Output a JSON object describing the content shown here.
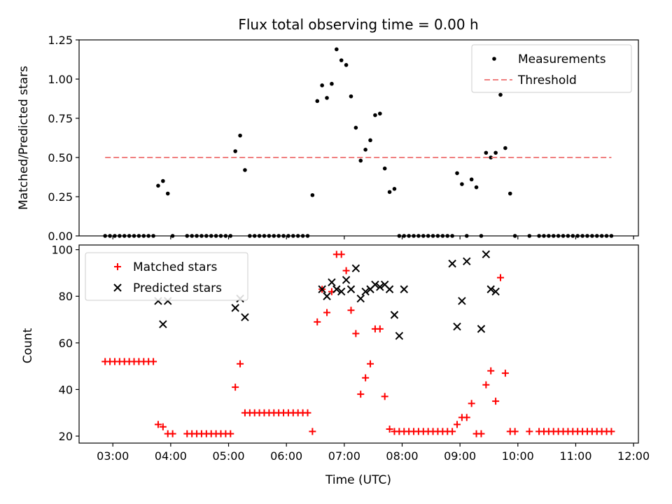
{
  "chart_data": [
    {
      "type": "scatter",
      "title": "Flux total observing time = 0.00 h",
      "xlabel": "",
      "ylabel": "Matched/Predicted stars",
      "xlim": [
        "02:25",
        "12:05"
      ],
      "ylim": [
        0,
        1.25
      ],
      "yticks": [
        0.0,
        0.25,
        0.5,
        0.75,
        1.0,
        1.25
      ],
      "ytick_labels": [
        "0.00",
        "0.25",
        "0.50",
        "0.75",
        "1.00",
        "1.25"
      ],
      "legend": {
        "position": "top-right",
        "entries": [
          "Measurements",
          "Threshold"
        ]
      },
      "series": [
        {
          "name": "Measurements",
          "marker": "dot",
          "color": "#000000",
          "x": [
            "02:52",
            "02:57",
            "03:02",
            "03:07",
            "03:12",
            "03:17",
            "03:22",
            "03:27",
            "03:32",
            "03:37",
            "03:42",
            "03:47",
            "03:52",
            "03:57",
            "04:02",
            "04:17",
            "04:22",
            "04:27",
            "04:32",
            "04:37",
            "04:42",
            "04:47",
            "04:52",
            "04:57",
            "05:02",
            "05:07",
            "05:12",
            "05:17",
            "05:22",
            "05:27",
            "05:32",
            "05:37",
            "05:42",
            "05:47",
            "05:52",
            "05:57",
            "06:02",
            "06:07",
            "06:12",
            "06:17",
            "06:22",
            "06:27",
            "06:32",
            "06:37",
            "06:42",
            "06:47",
            "06:52",
            "06:57",
            "07:02",
            "07:07",
            "07:12",
            "07:17",
            "07:22",
            "07:27",
            "07:32",
            "07:37",
            "07:42",
            "07:47",
            "07:52",
            "07:57",
            "08:02",
            "08:07",
            "08:12",
            "08:17",
            "08:22",
            "08:27",
            "08:32",
            "08:37",
            "08:42",
            "08:47",
            "08:52",
            "08:57",
            "09:02",
            "09:07",
            "09:12",
            "09:17",
            "09:22",
            "09:27",
            "09:32",
            "09:37",
            "09:42",
            "09:47",
            "09:52",
            "09:57",
            "10:12",
            "10:22",
            "10:27",
            "10:32",
            "10:37",
            "10:42",
            "10:47",
            "10:52",
            "10:57",
            "11:02",
            "11:07",
            "11:12",
            "11:17",
            "11:22",
            "11:27",
            "11:32",
            "11:37"
          ],
          "y": [
            0,
            0,
            0,
            0,
            0,
            0,
            0,
            0,
            0,
            0,
            0,
            0.32,
            0.35,
            0.27,
            0,
            0,
            0,
            0,
            0,
            0,
            0,
            0,
            0,
            0,
            0,
            0.54,
            0.64,
            0.42,
            0,
            0,
            0,
            0,
            0,
            0,
            0,
            0,
            0,
            0,
            0,
            0,
            0,
            0.26,
            0.86,
            0.96,
            0.88,
            0.97,
            1.19,
            1.12,
            1.09,
            0.89,
            0.69,
            0.48,
            0.55,
            0.61,
            0.77,
            0.78,
            0.43,
            0.28,
            0.3,
            0,
            0,
            0,
            0,
            0,
            0,
            0,
            0,
            0,
            0,
            0,
            0,
            0.4,
            0.33,
            0,
            0.36,
            0.31,
            0,
            0.53,
            0.5,
            0.53,
            0.9,
            0.56,
            0.27,
            0,
            0,
            0,
            0,
            0,
            0,
            0,
            0,
            0,
            0,
            0,
            0,
            0,
            0,
            0,
            0,
            0,
            0
          ]
        },
        {
          "name": "Threshold",
          "marker": "dashed-line",
          "color": "#f08080",
          "x": [
            "02:52",
            "11:37"
          ],
          "y": [
            0.5,
            0.5
          ]
        }
      ]
    },
    {
      "type": "scatter",
      "title": "",
      "xlabel": "Time (UTC)",
      "ylabel": "Count",
      "xlim": [
        "02:25",
        "12:05"
      ],
      "ylim": [
        17,
        102
      ],
      "xticks": [
        "03:00",
        "04:00",
        "05:00",
        "06:00",
        "07:00",
        "08:00",
        "09:00",
        "10:00",
        "11:00",
        "12:00"
      ],
      "yticks": [
        20,
        40,
        60,
        80,
        100
      ],
      "ytick_labels": [
        "20",
        "40",
        "60",
        "80",
        "100"
      ],
      "legend": {
        "position": "top-left",
        "entries": [
          "Matched stars",
          "Predicted stars"
        ]
      },
      "series": [
        {
          "name": "Matched stars",
          "marker": "plus",
          "color": "#ff0000",
          "x": [
            "02:52",
            "02:57",
            "03:02",
            "03:07",
            "03:12",
            "03:17",
            "03:22",
            "03:27",
            "03:32",
            "03:37",
            "03:42",
            "03:47",
            "03:52",
            "03:57",
            "04:02",
            "04:17",
            "04:22",
            "04:27",
            "04:32",
            "04:37",
            "04:42",
            "04:47",
            "04:52",
            "04:57",
            "05:02",
            "05:07",
            "05:12",
            "05:17",
            "05:22",
            "05:27",
            "05:32",
            "05:37",
            "05:42",
            "05:47",
            "05:52",
            "05:57",
            "06:02",
            "06:07",
            "06:12",
            "06:17",
            "06:22",
            "06:27",
            "06:32",
            "06:37",
            "06:42",
            "06:47",
            "06:52",
            "06:57",
            "07:02",
            "07:07",
            "07:12",
            "07:17",
            "07:22",
            "07:27",
            "07:32",
            "07:37",
            "07:42",
            "07:47",
            "07:52",
            "07:57",
            "08:02",
            "08:07",
            "08:12",
            "08:17",
            "08:22",
            "08:27",
            "08:32",
            "08:37",
            "08:42",
            "08:47",
            "08:52",
            "08:57",
            "09:02",
            "09:07",
            "09:12",
            "09:17",
            "09:22",
            "09:27",
            "09:32",
            "09:37",
            "09:42",
            "09:47",
            "09:52",
            "09:57",
            "10:12",
            "10:22",
            "10:27",
            "10:32",
            "10:37",
            "10:42",
            "10:47",
            "10:52",
            "10:57",
            "11:02",
            "11:07",
            "11:12",
            "11:17",
            "11:22",
            "11:27",
            "11:32",
            "11:37"
          ],
          "y": [
            52,
            52,
            52,
            52,
            52,
            52,
            52,
            52,
            52,
            52,
            52,
            25,
            24,
            21,
            21,
            21,
            21,
            21,
            21,
            21,
            21,
            21,
            21,
            21,
            21,
            41,
            51,
            30,
            30,
            30,
            30,
            30,
            30,
            30,
            30,
            30,
            30,
            30,
            30,
            30,
            30,
            22,
            69,
            83,
            73,
            82,
            98,
            98,
            91,
            74,
            64,
            38,
            45,
            51,
            66,
            66,
            37,
            23,
            22,
            22,
            22,
            22,
            22,
            22,
            22,
            22,
            22,
            22,
            22,
            22,
            22,
            25,
            28,
            28,
            34,
            21,
            21,
            42,
            48,
            35,
            88,
            47,
            22,
            22,
            22,
            22,
            22,
            22,
            22,
            22,
            22,
            22,
            22,
            22,
            22,
            22,
            22,
            22,
            22,
            22,
            22
          ]
        },
        {
          "name": "Predicted stars",
          "marker": "x",
          "color": "#000000",
          "x": [
            "03:47",
            "03:52",
            "03:57",
            "05:07",
            "05:12",
            "05:17",
            "06:37",
            "06:42",
            "06:47",
            "06:52",
            "06:57",
            "07:02",
            "07:07",
            "07:12",
            "07:17",
            "07:22",
            "07:27",
            "07:32",
            "07:37",
            "07:42",
            "07:47",
            "07:52",
            "07:57",
            "08:02",
            "08:52",
            "08:57",
            "09:02",
            "09:07",
            "09:22",
            "09:27",
            "09:32",
            "09:37",
            "09:42",
            "09:47",
            "09:52"
          ],
          "y": [
            78,
            68,
            78,
            75,
            79,
            71,
            83,
            80,
            86,
            83,
            82,
            87,
            83,
            92,
            79,
            82,
            83,
            85,
            84,
            85,
            83,
            72,
            63,
            83,
            94,
            67,
            78,
            95,
            66,
            98,
            83,
            82,
            null,
            null,
            null
          ]
        }
      ]
    }
  ]
}
